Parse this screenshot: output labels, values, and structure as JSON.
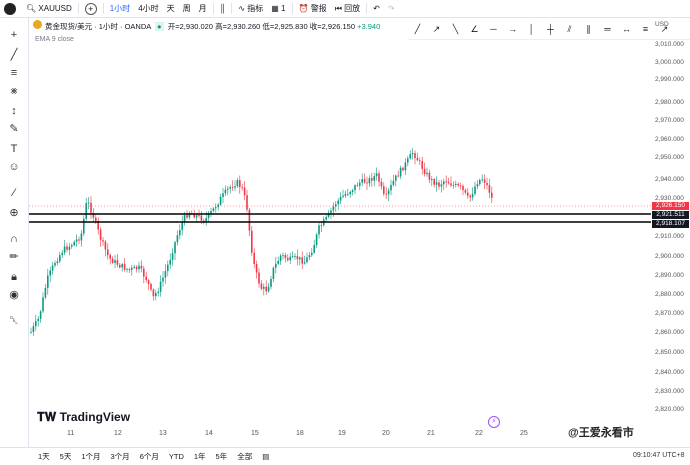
{
  "topbar": {
    "symbol": "XAUUSD",
    "intervals": [
      "1小时",
      "4小时",
      "天",
      "周",
      "月"
    ],
    "indicators_label": "指标",
    "layout_count": "1",
    "alert_label": "警报",
    "replay_label": "回放"
  },
  "legend": {
    "name": "黄金现货/美元 · 1小时 · OANDA",
    "open": "开=2,930.020",
    "high": "高=2,930.260",
    "low": "低=2,925.830",
    "close": "收=2,926.150",
    "change": "+3.940",
    "ema": "EMA 9 close"
  },
  "price_scale": {
    "currency": "USD",
    "labels": [
      "3,010.000",
      "3,000.000",
      "2,990.000",
      "2,980.000",
      "2,970.000",
      "2,960.000",
      "2,950.000",
      "2,940.000",
      "2,930.000",
      "2,910.000",
      "2,900.000",
      "2,890.000",
      "2,880.000",
      "2,870.000",
      "2,860.000",
      "2,850.000",
      "2,840.000",
      "2,830.000",
      "2,820.000"
    ],
    "current_price": "2,926.150",
    "line1_price": "2,921.511",
    "line2_price": "2,918.107"
  },
  "time_axis": [
    "11",
    "12",
    "13",
    "14",
    "15",
    "18",
    "19",
    "20",
    "21",
    "22",
    "25"
  ],
  "bottom_ranges": [
    "1天",
    "5天",
    "1个月",
    "3个月",
    "6个月",
    "YTD",
    "1年",
    "5年",
    "全部"
  ],
  "clock": "09:10:47 UTC+8",
  "logo_text": "TradingView",
  "watermark": "@王爱永看市",
  "colors": {
    "up": "#089981",
    "down": "#f23645",
    "line": "#000000"
  }
}
